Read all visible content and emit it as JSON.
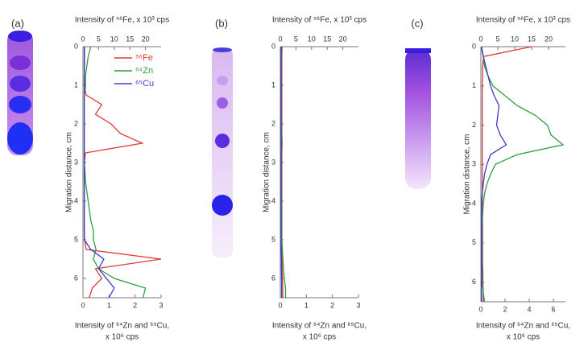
{
  "chart_data": [
    {
      "type": "line",
      "panel_label": "(a)",
      "x2label": "Intensity of ⁵⁶Fe, x 10³ cps",
      "xlabel": [
        "Intensity of ⁶⁴Zn and ⁶⁵Cu,",
        "x 10⁶ cps"
      ],
      "ylabel": "Migration distance, cm",
      "y": [
        0,
        0.25,
        0.5,
        0.75,
        1,
        1.25,
        1.5,
        1.75,
        2,
        2.25,
        2.5,
        2.75,
        3,
        3.25,
        3.5,
        3.75,
        4,
        4.25,
        4.5,
        4.75,
        5,
        5.25,
        5.5,
        5.75,
        6,
        6.25,
        6.5
      ],
      "ylim": [
        0,
        6.5
      ],
      "yticks": [
        0,
        1,
        2,
        3,
        4,
        5,
        6
      ],
      "xlim": [
        0,
        3
      ],
      "xticks": [
        0,
        1,
        2,
        3
      ],
      "x2lim": [
        0,
        25
      ],
      "x2ticks": [
        0,
        5,
        10,
        15,
        20
      ],
      "legend": "upper right",
      "series": [
        {
          "name": "⁵⁶Fe",
          "color": "#e03a3a",
          "axis": "x2",
          "values": [
            0.5,
            0.5,
            0.5,
            0.4,
            0.4,
            1,
            6,
            4,
            9,
            12,
            19,
            0.8,
            0.4,
            0.4,
            0.4,
            0.4,
            0.4,
            0.4,
            0.4,
            0.4,
            0.5,
            1,
            25,
            4,
            6,
            3,
            2
          ]
        },
        {
          "name": "⁶⁴Zn",
          "color": "#2e9e3a",
          "values": [
            0.3,
            0.2,
            0.15,
            0.1,
            0.1,
            0.05,
            0.05,
            0.05,
            0.05,
            0.05,
            0.05,
            0.05,
            0.05,
            0.08,
            0.1,
            0.15,
            0.2,
            0.25,
            0.3,
            0.4,
            0.4,
            0.5,
            0.4,
            0.6,
            1.2,
            2.4,
            2.3
          ]
        },
        {
          "name": "⁶⁵Cu",
          "color": "#3b3bd0",
          "values": [
            0.05,
            0.05,
            0.05,
            0.05,
            0.05,
            0.05,
            0.05,
            0.05,
            0.05,
            0.05,
            0.05,
            0.05,
            0.05,
            0.05,
            0.05,
            0.05,
            0.05,
            0.05,
            0.05,
            0.05,
            0.05,
            0.3,
            0.8,
            0.6,
            0.9,
            1.2,
            1
          ]
        }
      ]
    },
    {
      "type": "line",
      "panel_label": "(b)",
      "x2label": "Intensity of ⁵⁶Fe, x 10³ cps",
      "xlabel": [
        "Intensity of ⁶⁴Zn and ⁶⁵Cu,",
        "x 10⁶ cps"
      ],
      "ylabel": "Migration distance, cm",
      "y": [
        0,
        0.25,
        0.5,
        0.75,
        1,
        1.25,
        1.5,
        1.75,
        2,
        2.25,
        2.5,
        2.75,
        3,
        3.25,
        3.5,
        3.75,
        4,
        4.25,
        4.5,
        4.75,
        5,
        5.25,
        5.5,
        5.75,
        6,
        6.25,
        6.5
      ],
      "ylim": [
        0,
        6.5
      ],
      "yticks": [
        0,
        1,
        2,
        3,
        4,
        5,
        6
      ],
      "xlim": [
        0,
        3
      ],
      "xticks": [
        0,
        1,
        2,
        3
      ],
      "x2lim": [
        0,
        25
      ],
      "x2ticks": [
        0,
        5,
        10,
        15,
        20
      ],
      "series": [
        {
          "name": "⁵⁶Fe",
          "color": "#e03a3a",
          "axis": "x2",
          "values": [
            0.6,
            0.5,
            0.5,
            0.5,
            0.5,
            0.5,
            0.5,
            0.5,
            0.5,
            0.5,
            0.6,
            0.5,
            0.5,
            0.5,
            0.5,
            0.5,
            0.5,
            0.5,
            0.5,
            0.5,
            0.5,
            0.5,
            0.6,
            0.6,
            0.7,
            0.8,
            0.8
          ]
        },
        {
          "name": "⁶⁴Zn",
          "color": "#2e9e3a",
          "values": [
            0.05,
            0.04,
            0.04,
            0.04,
            0.04,
            0.04,
            0.04,
            0.04,
            0.04,
            0.05,
            0.05,
            0.04,
            0.04,
            0.04,
            0.04,
            0.04,
            0.05,
            0.05,
            0.05,
            0.05,
            0.06,
            0.08,
            0.1,
            0.12,
            0.15,
            0.2,
            0.2
          ]
        },
        {
          "name": "⁶⁵Cu",
          "color": "#3b3bd0",
          "values": [
            0.03,
            0.03,
            0.03,
            0.03,
            0.03,
            0.03,
            0.03,
            0.03,
            0.03,
            0.03,
            0.03,
            0.03,
            0.03,
            0.03,
            0.03,
            0.03,
            0.03,
            0.03,
            0.03,
            0.03,
            0.03,
            0.03,
            0.04,
            0.04,
            0.05,
            0.05,
            0.05
          ]
        }
      ]
    },
    {
      "type": "line",
      "panel_label": "(c)",
      "x2label": "Intensity of ⁵⁶Fe, x 10³ cps",
      "xlabel": [
        "Intensity of ⁶⁴Zn and ⁶⁵Cu,",
        "x 10⁶ cps"
      ],
      "ylabel": "Migration distance, cm",
      "y": [
        0,
        0.25,
        0.5,
        0.75,
        1,
        1.25,
        1.5,
        1.75,
        2,
        2.25,
        2.5,
        2.75,
        3,
        3.25,
        3.5,
        3.75,
        4,
        4.25,
        4.5,
        4.75,
        5,
        5.25,
        5.5,
        5.75,
        6,
        6.25,
        6.5
      ],
      "ylim": [
        0,
        6.5
      ],
      "yticks": [
        0,
        1,
        2,
        3,
        4,
        5,
        6
      ],
      "xlim": [
        0,
        7
      ],
      "xticks": [
        0,
        2,
        4,
        6
      ],
      "x2lim": [
        0,
        25
      ],
      "x2ticks": [
        0,
        5,
        10,
        15,
        20
      ],
      "series": [
        {
          "name": "⁵⁶Fe",
          "color": "#e03a3a",
          "axis": "x2",
          "values": [
            15,
            0.8,
            0.5,
            0.5,
            0.4,
            0.4,
            0.4,
            0.4,
            0.4,
            0.4,
            0.4,
            0.4,
            0.4,
            0.4,
            0.4,
            0.4,
            0.4,
            0.4,
            0.5,
            0.5,
            0.5,
            0.5,
            0.5,
            0.6,
            0.6,
            0.7,
            0.7
          ]
        },
        {
          "name": "⁶⁴Zn",
          "color": "#2e9e3a",
          "values": [
            0,
            0.2,
            0.3,
            0.6,
            1,
            2,
            3,
            4.5,
            5.5,
            5.8,
            6.8,
            3,
            1.2,
            0.8,
            0.5,
            0.3,
            0.2,
            0.15,
            0.1,
            0.1,
            0.1,
            0.1,
            0.1,
            0.1,
            0.1,
            0.2,
            0.3
          ]
        },
        {
          "name": "⁶⁵Cu",
          "color": "#3b3bd0",
          "values": [
            0.05,
            0.2,
            0.4,
            0.6,
            0.8,
            1.1,
            1.5,
            1.4,
            1.3,
            1.6,
            2.1,
            0.8,
            0.5,
            0.3,
            0.2,
            0.1,
            0.05,
            0.05,
            0.05,
            0.05,
            0.05,
            0.05,
            0.05,
            0.05,
            0.05,
            0.05,
            0.05
          ]
        }
      ]
    }
  ]
}
